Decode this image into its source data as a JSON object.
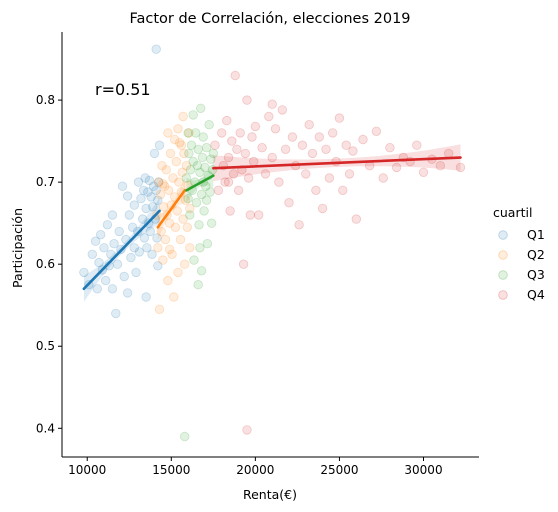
{
  "chart_data": {
    "type": "scatter",
    "title": "Factor de Correlación, elecciones 2019",
    "xlabel": "Renta(€)",
    "ylabel": "Participación",
    "xlim": [
      8500,
      33300
    ],
    "ylim": [
      0.365,
      0.883
    ],
    "x_ticks": [
      10000,
      15000,
      20000,
      25000,
      30000
    ],
    "y_ticks": [
      0.4,
      0.5,
      0.6,
      0.7,
      0.8
    ],
    "annotation": "r=0.51",
    "legend": {
      "title": "cuartil",
      "placement": "right"
    },
    "grid": false,
    "series": [
      {
        "name": "Q1",
        "color": "#1f77b4",
        "fit": [
          [
            9800,
            0.57
          ],
          [
            14300,
            0.665
          ]
        ],
        "points": [
          [
            9800,
            0.59
          ],
          [
            10100,
            0.575
          ],
          [
            10300,
            0.612
          ],
          [
            10500,
            0.628
          ],
          [
            10600,
            0.57
          ],
          [
            10700,
            0.602
          ],
          [
            10800,
            0.636
          ],
          [
            10900,
            0.593
          ],
          [
            11000,
            0.62
          ],
          [
            11100,
            0.58
          ],
          [
            11200,
            0.648
          ],
          [
            11300,
            0.598
          ],
          [
            11400,
            0.612
          ],
          [
            11500,
            0.57
          ],
          [
            11600,
            0.625
          ],
          [
            11700,
            0.54
          ],
          [
            11800,
            0.6
          ],
          [
            11900,
            0.64
          ],
          [
            12000,
            0.618
          ],
          [
            12100,
            0.695
          ],
          [
            12200,
            0.585
          ],
          [
            12300,
            0.63
          ],
          [
            12400,
            0.565
          ],
          [
            12500,
            0.66
          ],
          [
            12600,
            0.608
          ],
          [
            12700,
            0.645
          ],
          [
            12800,
            0.672
          ],
          [
            12900,
            0.59
          ],
          [
            13000,
            0.64
          ],
          [
            13050,
            0.7
          ],
          [
            13100,
            0.615
          ],
          [
            13200,
            0.68
          ],
          [
            13300,
            0.655
          ],
          [
            13350,
            0.69
          ],
          [
            13400,
            0.632
          ],
          [
            13450,
            0.705
          ],
          [
            13500,
            0.668
          ],
          [
            13550,
            0.62
          ],
          [
            13600,
            0.688
          ],
          [
            13650,
            0.65
          ],
          [
            13700,
            0.702
          ],
          [
            13750,
            0.64
          ],
          [
            13800,
            0.682
          ],
          [
            13850,
            0.612
          ],
          [
            13900,
            0.67
          ],
          [
            13950,
            0.695
          ],
          [
            14000,
            0.735
          ],
          [
            14050,
            0.655
          ],
          [
            14100,
            0.69
          ],
          [
            14150,
            0.632
          ],
          [
            14200,
            0.678
          ],
          [
            14250,
            0.7
          ],
          [
            14300,
            0.745
          ],
          [
            14100,
            0.862
          ],
          [
            14200,
            0.598
          ],
          [
            12800,
            0.62
          ],
          [
            12400,
            0.683
          ],
          [
            11500,
            0.66
          ],
          [
            13500,
            0.56
          ]
        ]
      },
      {
        "name": "Q2",
        "color": "#ff7f0e",
        "fit": [
          [
            14200,
            0.645
          ],
          [
            15800,
            0.69
          ]
        ],
        "points": [
          [
            14150,
            0.66
          ],
          [
            14200,
            0.62
          ],
          [
            14250,
            0.7
          ],
          [
            14300,
            0.545
          ],
          [
            14350,
            0.685
          ],
          [
            14400,
            0.64
          ],
          [
            14450,
            0.72
          ],
          [
            14500,
            0.605
          ],
          [
            14550,
            0.67
          ],
          [
            14600,
            0.695
          ],
          [
            14650,
            0.63
          ],
          [
            14700,
            0.715
          ],
          [
            14750,
            0.66
          ],
          [
            14800,
            0.58
          ],
          [
            14850,
            0.69
          ],
          [
            14900,
            0.65
          ],
          [
            14950,
            0.735
          ],
          [
            15000,
            0.672
          ],
          [
            15050,
            0.612
          ],
          [
            15100,
            0.705
          ],
          [
            15150,
            0.56
          ],
          [
            15200,
            0.682
          ],
          [
            15250,
            0.645
          ],
          [
            15300,
            0.725
          ],
          [
            15350,
            0.665
          ],
          [
            15400,
            0.59
          ],
          [
            15450,
            0.7
          ],
          [
            15500,
            0.748
          ],
          [
            15550,
            0.63
          ],
          [
            15600,
            0.688
          ],
          [
            15650,
            0.712
          ],
          [
            15700,
            0.655
          ],
          [
            15750,
            0.735
          ],
          [
            15800,
            0.6
          ],
          [
            15850,
            0.678
          ],
          [
            15900,
            0.72
          ],
          [
            15950,
            0.645
          ],
          [
            16000,
            0.696
          ],
          [
            16050,
            0.76
          ],
          [
            16100,
            0.668
          ],
          [
            14800,
            0.76
          ],
          [
            15200,
            0.752
          ],
          [
            15400,
            0.765
          ],
          [
            15600,
            0.745
          ],
          [
            14500,
            0.698
          ],
          [
            14900,
            0.618
          ],
          [
            15700,
            0.78
          ],
          [
            16100,
            0.62
          ]
        ]
      },
      {
        "name": "Q3",
        "color": "#2ca02c",
        "fit": [
          [
            15900,
            0.69
          ],
          [
            17500,
            0.708
          ]
        ],
        "points": [
          [
            15900,
            0.705
          ],
          [
            16000,
            0.68
          ],
          [
            16050,
            0.735
          ],
          [
            16100,
            0.66
          ],
          [
            16150,
            0.715
          ],
          [
            16200,
            0.745
          ],
          [
            16250,
            0.69
          ],
          [
            16300,
            0.725
          ],
          [
            16350,
            0.605
          ],
          [
            16400,
            0.7
          ],
          [
            16450,
            0.76
          ],
          [
            16500,
            0.675
          ],
          [
            16550,
            0.72
          ],
          [
            16600,
            0.74
          ],
          [
            16650,
            0.648
          ],
          [
            16700,
            0.712
          ],
          [
            16750,
            0.79
          ],
          [
            16800,
            0.685
          ],
          [
            16850,
            0.73
          ],
          [
            16900,
            0.755
          ],
          [
            16950,
            0.665
          ],
          [
            17000,
            0.718
          ],
          [
            17050,
            0.695
          ],
          [
            17100,
            0.742
          ],
          [
            17150,
            0.625
          ],
          [
            17200,
            0.708
          ],
          [
            17250,
            0.77
          ],
          [
            17300,
            0.688
          ],
          [
            17350,
            0.728
          ],
          [
            17400,
            0.65
          ],
          [
            17450,
            0.715
          ],
          [
            17500,
            0.735
          ],
          [
            16600,
            0.575
          ],
          [
            16800,
            0.592
          ],
          [
            16000,
            0.76
          ],
          [
            17100,
            0.678
          ],
          [
            16300,
            0.782
          ],
          [
            16700,
            0.62
          ],
          [
            15800,
            0.39
          ],
          [
            16900,
            0.7
          ]
        ]
      },
      {
        "name": "Q4",
        "color": "#d62728",
        "fit": [
          [
            17500,
            0.717
          ],
          [
            32200,
            0.73
          ]
        ],
        "points": [
          [
            17600,
            0.745
          ],
          [
            17800,
            0.69
          ],
          [
            18000,
            0.76
          ],
          [
            18100,
            0.72
          ],
          [
            18200,
            0.7
          ],
          [
            18300,
            0.775
          ],
          [
            18400,
            0.73
          ],
          [
            18500,
            0.665
          ],
          [
            18600,
            0.75
          ],
          [
            18700,
            0.71
          ],
          [
            18800,
            0.83
          ],
          [
            18900,
            0.74
          ],
          [
            19000,
            0.69
          ],
          [
            19100,
            0.76
          ],
          [
            19200,
            0.715
          ],
          [
            19300,
            0.6
          ],
          [
            19400,
            0.735
          ],
          [
            19500,
            0.8
          ],
          [
            19600,
            0.705
          ],
          [
            19700,
            0.66
          ],
          [
            19800,
            0.755
          ],
          [
            19900,
            0.725
          ],
          [
            20000,
            0.768
          ],
          [
            20200,
            0.66
          ],
          [
            20400,
            0.742
          ],
          [
            20600,
            0.71
          ],
          [
            20800,
            0.78
          ],
          [
            21000,
            0.73
          ],
          [
            21200,
            0.765
          ],
          [
            21400,
            0.7
          ],
          [
            21600,
            0.788
          ],
          [
            21800,
            0.74
          ],
          [
            22000,
            0.675
          ],
          [
            22200,
            0.755
          ],
          [
            22400,
            0.72
          ],
          [
            22600,
            0.648
          ],
          [
            22800,
            0.745
          ],
          [
            23000,
            0.71
          ],
          [
            23200,
            0.77
          ],
          [
            23400,
            0.735
          ],
          [
            23600,
            0.69
          ],
          [
            23800,
            0.755
          ],
          [
            24000,
            0.668
          ],
          [
            24200,
            0.74
          ],
          [
            24400,
            0.705
          ],
          [
            24600,
            0.76
          ],
          [
            24800,
            0.725
          ],
          [
            25000,
            0.778
          ],
          [
            25200,
            0.69
          ],
          [
            25400,
            0.745
          ],
          [
            25600,
            0.71
          ],
          [
            25800,
            0.738
          ],
          [
            26000,
            0.655
          ],
          [
            26400,
            0.752
          ],
          [
            26800,
            0.72
          ],
          [
            27200,
            0.762
          ],
          [
            27600,
            0.705
          ],
          [
            28000,
            0.742
          ],
          [
            28400,
            0.718
          ],
          [
            28800,
            0.73
          ],
          [
            29200,
            0.725
          ],
          [
            29600,
            0.745
          ],
          [
            30000,
            0.712
          ],
          [
            30500,
            0.728
          ],
          [
            31000,
            0.72
          ],
          [
            31500,
            0.735
          ],
          [
            32200,
            0.718
          ],
          [
            19500,
            0.398
          ],
          [
            21000,
            0.795
          ],
          [
            18400,
            0.7
          ]
        ]
      }
    ]
  }
}
